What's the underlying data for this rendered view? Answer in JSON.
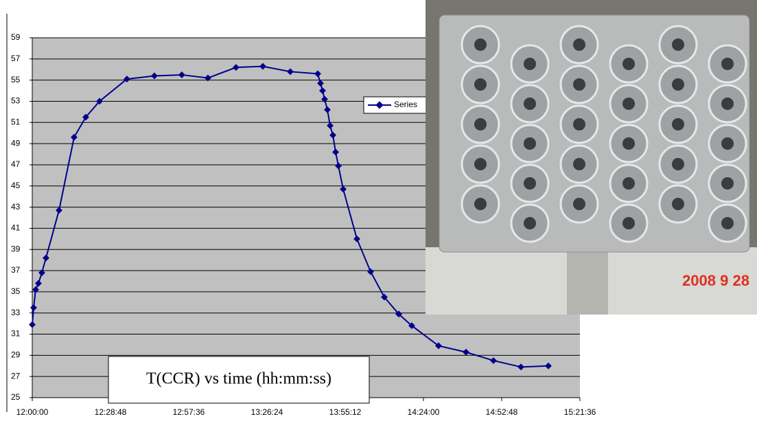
{
  "chart_data": {
    "type": "line",
    "x": [
      43200,
      43230,
      43276,
      43336,
      43412,
      43503,
      43791,
      44124,
      44382,
      44685,
      45291,
      45897,
      46503,
      47079,
      47700,
      48293,
      48899,
      49505,
      49566,
      49611,
      49657,
      49718,
      49779,
      49840,
      49900,
      49961,
      50067,
      50370,
      50673,
      50976,
      51294,
      51582,
      52173,
      52780,
      53386,
      53993,
      54599
    ],
    "series": [
      {
        "name": "Series",
        "color": "#00008b",
        "values": [
          31.9,
          33.5,
          35.2,
          35.8,
          36.8,
          38.2,
          42.7,
          49.6,
          51.5,
          53.0,
          55.1,
          55.4,
          55.5,
          55.2,
          56.2,
          56.3,
          55.8,
          55.6,
          54.7,
          54.0,
          53.2,
          52.2,
          50.7,
          49.8,
          48.2,
          46.9,
          44.7,
          40.0,
          36.9,
          34.5,
          32.9,
          31.8,
          29.9,
          29.3,
          28.5,
          27.9,
          28.0
        ]
      }
    ],
    "xlim": [
      43200,
      55296
    ],
    "xticks": [
      {
        "value": 43200,
        "label": "12:00:00"
      },
      {
        "value": 44928,
        "label": "12:28:48"
      },
      {
        "value": 46656,
        "label": "12:57:36"
      },
      {
        "value": 48384,
        "label": "13:26:24"
      },
      {
        "value": 50112,
        "label": "13:55:12"
      },
      {
        "value": 51840,
        "label": "14:24:00"
      },
      {
        "value": 53568,
        "label": "14:52:48"
      },
      {
        "value": 55296,
        "label": "15:21:36"
      }
    ],
    "ylim": [
      25,
      59
    ],
    "yticks": [
      25,
      27,
      29,
      31,
      33,
      35,
      37,
      39,
      41,
      43,
      45,
      47,
      49,
      51,
      53,
      55,
      57,
      59
    ],
    "grid": true,
    "annotations": [
      "T(CCR) vs time (hh:mm:ss)",
      "2008 9 28"
    ]
  }
}
